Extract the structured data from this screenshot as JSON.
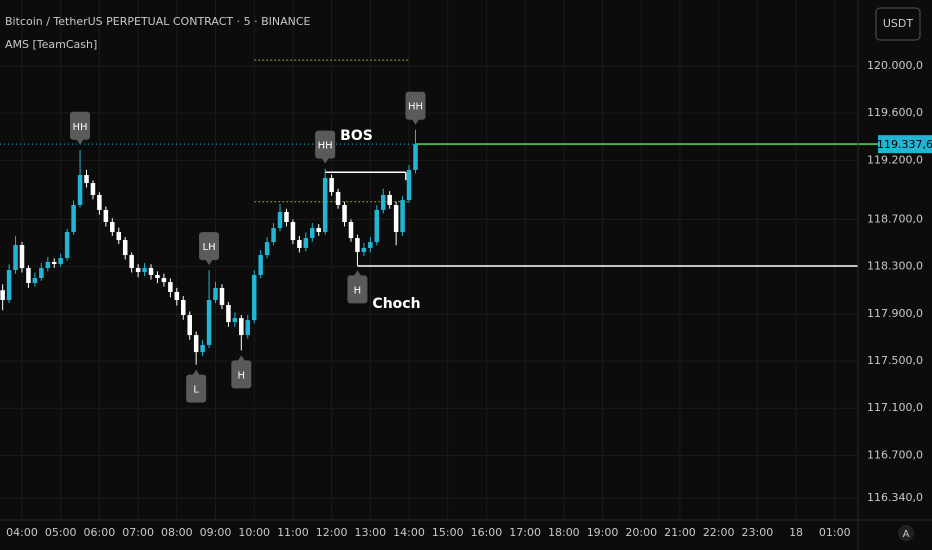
{
  "chart_data": {
    "type": "candlestick",
    "title": "Bitcoin / TetherUS PERPETUAL CONTRACT · 5 · BINANCE",
    "subtitle": "AMS [TeamCash]",
    "up_color": "#22b5d4",
    "down_color": "#ffffff",
    "open": [
      118100,
      118017,
      118271,
      118483,
      118288,
      118161,
      118203,
      118288,
      118339,
      118322,
      118373,
      118593,
      118822,
      119076,
      119008,
      118907,
      118780,
      118678,
      118593,
      118525,
      118398,
      118288,
      118254,
      118288,
      118229,
      118203,
      118169,
      118085,
      118017,
      117890,
      117720,
      117576,
      117636,
      118017,
      118119,
      117975,
      117830,
      117864,
      117720,
      117847,
      118229,
      118398,
      118508,
      118627,
      118763,
      118678,
      118525,
      118458,
      118542,
      118627,
      118593,
      119051,
      118932,
      118822,
      118678,
      118542,
      118424,
      118458,
      118508,
      118780,
      118907,
      118822,
      118593,
      118864,
      119119
    ],
    "high": [
      118150,
      118320,
      118560,
      118510,
      118310,
      118250,
      118330,
      118380,
      118370,
      118410,
      118620,
      118860,
      119290,
      119120,
      119030,
      118930,
      118810,
      118710,
      118630,
      118550,
      118420,
      118320,
      118330,
      118320,
      118260,
      118240,
      118200,
      118120,
      118050,
      117920,
      117750,
      117680,
      118270,
      118170,
      118150,
      118000,
      117910,
      117890,
      117890,
      118270,
      118440,
      118550,
      118670,
      118830,
      118790,
      118700,
      118560,
      118590,
      118670,
      118660,
      119130,
      119080,
      118960,
      118850,
      118700,
      118570,
      118500,
      118550,
      118820,
      118960,
      118940,
      118850,
      118900,
      119160,
      119460
    ],
    "low": [
      117930,
      117990,
      118240,
      118250,
      118120,
      118130,
      118180,
      118260,
      118290,
      118300,
      118350,
      118570,
      118800,
      118970,
      118870,
      118740,
      118640,
      118560,
      118490,
      118360,
      118250,
      118210,
      118220,
      118190,
      118160,
      118130,
      118040,
      117970,
      117850,
      117680,
      117470,
      117540,
      117610,
      117990,
      117940,
      117790,
      117790,
      117590,
      117690,
      117820,
      118200,
      118370,
      118480,
      118600,
      118640,
      118490,
      118420,
      118430,
      118510,
      118560,
      118570,
      118900,
      118790,
      118640,
      118510,
      118310,
      118390,
      118420,
      118480,
      118750,
      118790,
      118480,
      118560,
      118840,
      119090
    ],
    "close": [
      118017,
      118271,
      118483,
      118288,
      118161,
      118203,
      118288,
      118339,
      118322,
      118373,
      118593,
      118822,
      119076,
      119008,
      118907,
      118780,
      118678,
      118593,
      118525,
      118398,
      118288,
      118254,
      118288,
      118229,
      118203,
      118169,
      118085,
      118017,
      117890,
      117720,
      117576,
      117636,
      118017,
      118119,
      117975,
      117830,
      117864,
      117720,
      117847,
      118229,
      118398,
      118508,
      118627,
      118763,
      118678,
      118525,
      118458,
      118542,
      118627,
      118593,
      119051,
      118932,
      118822,
      118678,
      118542,
      118424,
      118458,
      118508,
      118780,
      118907,
      118822,
      118593,
      118864,
      119119,
      119337.6
    ],
    "swing_highs": [
      null,
      null,
      null,
      null,
      null,
      null,
      null,
      null,
      null,
      null,
      null,
      null,
      "HH",
      null,
      null,
      null,
      null,
      null,
      null,
      null,
      null,
      null,
      null,
      null,
      null,
      null,
      null,
      null,
      null,
      null,
      null,
      null,
      "LH",
      null,
      null,
      null,
      null,
      null,
      null,
      null,
      null,
      null,
      null,
      null,
      null,
      null,
      null,
      null,
      null,
      null,
      "HH",
      null,
      null,
      null,
      null,
      null,
      null,
      null,
      null,
      null,
      null,
      null,
      null,
      null,
      "HH"
    ],
    "swing_lows": [
      null,
      null,
      null,
      null,
      null,
      null,
      null,
      null,
      null,
      null,
      null,
      null,
      null,
      null,
      null,
      null,
      null,
      null,
      null,
      null,
      null,
      null,
      null,
      null,
      null,
      null,
      null,
      null,
      null,
      null,
      "L",
      null,
      null,
      null,
      null,
      null,
      null,
      "H",
      null,
      null,
      null,
      null,
      null,
      null,
      null,
      null,
      null,
      null,
      null,
      null,
      null,
      null,
      null,
      null,
      null,
      "H",
      null,
      null,
      null,
      null,
      null,
      null,
      null,
      null,
      null
    ],
    "bos": {
      "label": "BOS",
      "value": 119100
    },
    "choch": {
      "label": "Choch",
      "value": 118305
    },
    "dotted_levels": [
      120050,
      118850
    ],
    "dotted_color": "#a89a3c",
    "last_price": {
      "value": 119337.6,
      "label": "119.337,6"
    },
    "last_price_color": "#4caf50",
    "ylim": [
      116153,
      120559
    ],
    "yticks": [
      {
        "value": 120000,
        "label": "120.000,0"
      },
      {
        "value": 119600,
        "label": "119.600,0"
      },
      {
        "value": 119200,
        "label": "119.200,0"
      },
      {
        "value": 118700,
        "label": "118.700,0"
      },
      {
        "value": 118300,
        "label": "118.300,0"
      },
      {
        "value": 117900,
        "label": "117.900,0"
      },
      {
        "value": 117500,
        "label": "117.500,0"
      },
      {
        "value": 117100,
        "label": "117.100,0"
      },
      {
        "value": 116700,
        "label": "116.700,0"
      },
      {
        "value": 116340,
        "label": "116.340,0"
      }
    ],
    "xlim": [
      -0.41,
      132.6
    ],
    "xticks": [
      {
        "value": 3,
        "label": "04:00"
      },
      {
        "value": 9,
        "label": "05:00"
      },
      {
        "value": 15,
        "label": "06:00"
      },
      {
        "value": 21,
        "label": "07:00"
      },
      {
        "value": 27,
        "label": "08:00"
      },
      {
        "value": 33,
        "label": "09:00"
      },
      {
        "value": 39,
        "label": "10:00"
      },
      {
        "value": 45,
        "label": "11:00"
      },
      {
        "value": 51,
        "label": "12:00"
      },
      {
        "value": 57,
        "label": "13:00"
      },
      {
        "value": 63,
        "label": "14:00"
      },
      {
        "value": 69,
        "label": "15:00"
      },
      {
        "value": 75,
        "label": "16:00"
      },
      {
        "value": 81,
        "label": "17:00"
      },
      {
        "value": 87,
        "label": "18:00"
      },
      {
        "value": 93,
        "label": "19:00"
      },
      {
        "value": 99,
        "label": "20:00"
      },
      {
        "value": 105,
        "label": "21:00"
      },
      {
        "value": 111,
        "label": "22:00"
      },
      {
        "value": 117,
        "label": "23:00"
      },
      {
        "value": 123,
        "label": "18"
      },
      {
        "value": 129,
        "label": "01:00"
      }
    ],
    "grid": true
  },
  "ui": {
    "currency": "USDT",
    "auto": "A"
  }
}
